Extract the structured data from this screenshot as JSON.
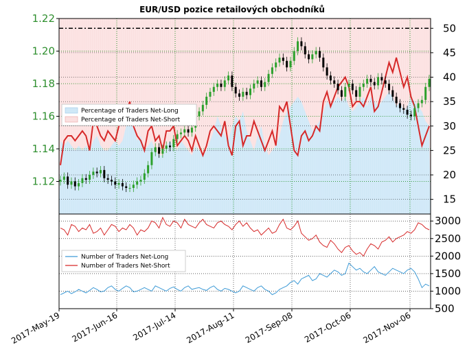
{
  "chart_data": {
    "title": "EUR/USD pozice retailových obchodníků",
    "x_ticks": [
      "2017-May-19",
      "2017-Jun-16",
      "2017-Jul-14",
      "2017-Aug-11",
      "2017-Sep-08",
      "2017-Oct-06",
      "2017-Nov-06"
    ],
    "panels": [
      {
        "type": "candlestick+area+line",
        "price_axis_ticks": [
          "1.12",
          "1.14",
          "1.16",
          "1.18",
          "1.20",
          "1.22"
        ],
        "price_ylim": [
          1.1,
          1.22
        ],
        "percent_axis_ticks": [
          "15",
          "20",
          "25",
          "30",
          "35",
          "40",
          "45",
          "50"
        ],
        "percent_ylim": [
          12,
          52
        ],
        "reference_line": 50,
        "legend": [
          "Percentage of Traders Net-Long",
          "Percentage of Traders Net-Short"
        ],
        "legend_position": "center-left",
        "grid": true,
        "ohlc_close": [
          1.121,
          1.123,
          1.118,
          1.12,
          1.117,
          1.119,
          1.122,
          1.121,
          1.124,
          1.126,
          1.125,
          1.127,
          1.122,
          1.121,
          1.12,
          1.118,
          1.119,
          1.117,
          1.116,
          1.116,
          1.118,
          1.12,
          1.121,
          1.125,
          1.13,
          1.138,
          1.141,
          1.137,
          1.14,
          1.142,
          1.141,
          1.146,
          1.149,
          1.15,
          1.152,
          1.15,
          1.153,
          1.16,
          1.163,
          1.167,
          1.172,
          1.175,
          1.178,
          1.18,
          1.178,
          1.182,
          1.185,
          1.178,
          1.174,
          1.172,
          1.175,
          1.173,
          1.177,
          1.18,
          1.182,
          1.178,
          1.181,
          1.186,
          1.19,
          1.193,
          1.196,
          1.194,
          1.19,
          1.194,
          1.2,
          1.206,
          1.203,
          1.198,
          1.195,
          1.198,
          1.2,
          1.196,
          1.19,
          1.185,
          1.182,
          1.18,
          1.176,
          1.172,
          1.178,
          1.18,
          1.176,
          1.172,
          1.178,
          1.18,
          1.183,
          1.181,
          1.179,
          1.184,
          1.182,
          1.18,
          1.176,
          1.172,
          1.168,
          1.165,
          1.164,
          1.161,
          1.16,
          1.165,
          1.168,
          1.17,
          1.178,
          1.183
        ],
        "net_long_pct": [
          27,
          26,
          27,
          26,
          25,
          26,
          25,
          26,
          25,
          27,
          28,
          26,
          25,
          25,
          26,
          27,
          26,
          27,
          30,
          31,
          30,
          27,
          28,
          25,
          26,
          27,
          25,
          24,
          24,
          26,
          27,
          26,
          25,
          27,
          26,
          25,
          24,
          26,
          25,
          24,
          25,
          27,
          29,
          32,
          30,
          28,
          27,
          30,
          32,
          31,
          33,
          29,
          27,
          25,
          28,
          30,
          26,
          24,
          25,
          26,
          28,
          31,
          33,
          34,
          35,
          36,
          35,
          33,
          31,
          29,
          30,
          31,
          33,
          35,
          34,
          35,
          36,
          35,
          36,
          34,
          33,
          34,
          35,
          36,
          34,
          36,
          35,
          34,
          35,
          36,
          37,
          36,
          34,
          35,
          33,
          34,
          36,
          35,
          34,
          33,
          31,
          30
        ],
        "net_short_pct": [
          22,
          27,
          28,
          28,
          27,
          28,
          29,
          28,
          25,
          31,
          30,
          28,
          27,
          29,
          28,
          27,
          30,
          31,
          33,
          35,
          30,
          28,
          27,
          25,
          29,
          30,
          27,
          28,
          25,
          29,
          29,
          30,
          26,
          27,
          28,
          27,
          25,
          28,
          26,
          24,
          26,
          29,
          30,
          29,
          28,
          31,
          26,
          24,
          30,
          31,
          26,
          28,
          28,
          31,
          29,
          27,
          25,
          27,
          29,
          26,
          34,
          33,
          35,
          30,
          25,
          24,
          28,
          29,
          27,
          28,
          30,
          29,
          35,
          37,
          34,
          36,
          38,
          39,
          40,
          38,
          34,
          35,
          35,
          34,
          36,
          38,
          33,
          34,
          37,
          40,
          43,
          41,
          44,
          41,
          38,
          40,
          36,
          34,
          30,
          26,
          28,
          30
        ]
      },
      {
        "type": "line",
        "y_axis_ticks": [
          "500",
          "1000",
          "1500",
          "2000",
          "2500",
          "3000"
        ],
        "ylim": [
          500,
          3200
        ],
        "legend": [
          "Number of Traders Net-Long",
          "Number of Traders Net-Short"
        ],
        "legend_position": "center-left",
        "grid": true,
        "net_long": [
          900,
          950,
          1000,
          930,
          980,
          1050,
          1000,
          950,
          1020,
          1100,
          1050,
          980,
          1000,
          1100,
          1150,
          1050,
          1000,
          1080,
          1150,
          1100,
          980,
          1000,
          1050,
          1100,
          1050,
          1000,
          1150,
          1100,
          1050,
          1000,
          1080,
          1120,
          1050,
          1000,
          1100,
          1150,
          1050,
          1080,
          1100,
          1050,
          1020,
          1100,
          1150,
          1050,
          1000,
          1080,
          1050,
          1000,
          950,
          1000,
          1150,
          1100,
          1050,
          1000,
          1100,
          1150,
          1050,
          1000,
          900,
          950,
          1050,
          1100,
          1150,
          1250,
          1300,
          1200,
          1350,
          1400,
          1450,
          1300,
          1350,
          1500,
          1450,
          1400,
          1500,
          1600,
          1550,
          1450,
          1500,
          1800,
          1700,
          1600,
          1650,
          1550,
          1500,
          1600,
          1700,
          1550,
          1500,
          1450,
          1550,
          1650,
          1600,
          1550,
          1500,
          1600,
          1650,
          1550,
          1350,
          1100,
          1200,
          1150
        ],
        "net_short": [
          2800,
          2750,
          2600,
          2900,
          2850,
          2700,
          2800,
          2750,
          2900,
          2650,
          2700,
          2800,
          2600,
          2750,
          2900,
          2850,
          2700,
          2800,
          2750,
          2900,
          2800,
          2600,
          2750,
          2700,
          2800,
          3000,
          2950,
          2800,
          3100,
          2900,
          2850,
          3000,
          2950,
          2800,
          3050,
          2900,
          2850,
          2800,
          2950,
          3050,
          2900,
          2850,
          2800,
          2950,
          3000,
          2900,
          2850,
          2750,
          2900,
          3000,
          2850,
          2950,
          2800,
          2700,
          2750,
          2600,
          2700,
          2800,
          2650,
          2700,
          2900,
          3050,
          2800,
          2750,
          2850,
          3000,
          2650,
          2550,
          2450,
          2500,
          2600,
          2400,
          2300,
          2250,
          2450,
          2350,
          2200,
          2100,
          2250,
          2300,
          2150,
          2050,
          2100,
          2000,
          2200,
          2350,
          2300,
          2200,
          2400,
          2450,
          2550,
          2400,
          2500,
          2550,
          2600,
          2700,
          2650,
          2750,
          2950,
          2900,
          2800,
          2750
        ]
      }
    ]
  },
  "colors": {
    "net_long_fill": "#cfe8f7",
    "net_short_fill": "#fbe0e0",
    "net_long_line": "#3d9ad6",
    "net_short_line": "#d62828",
    "price_up": "#2ca02c",
    "price_down": "#000000",
    "axis_green": "#2f8f2f",
    "grid_green": "#008000"
  }
}
